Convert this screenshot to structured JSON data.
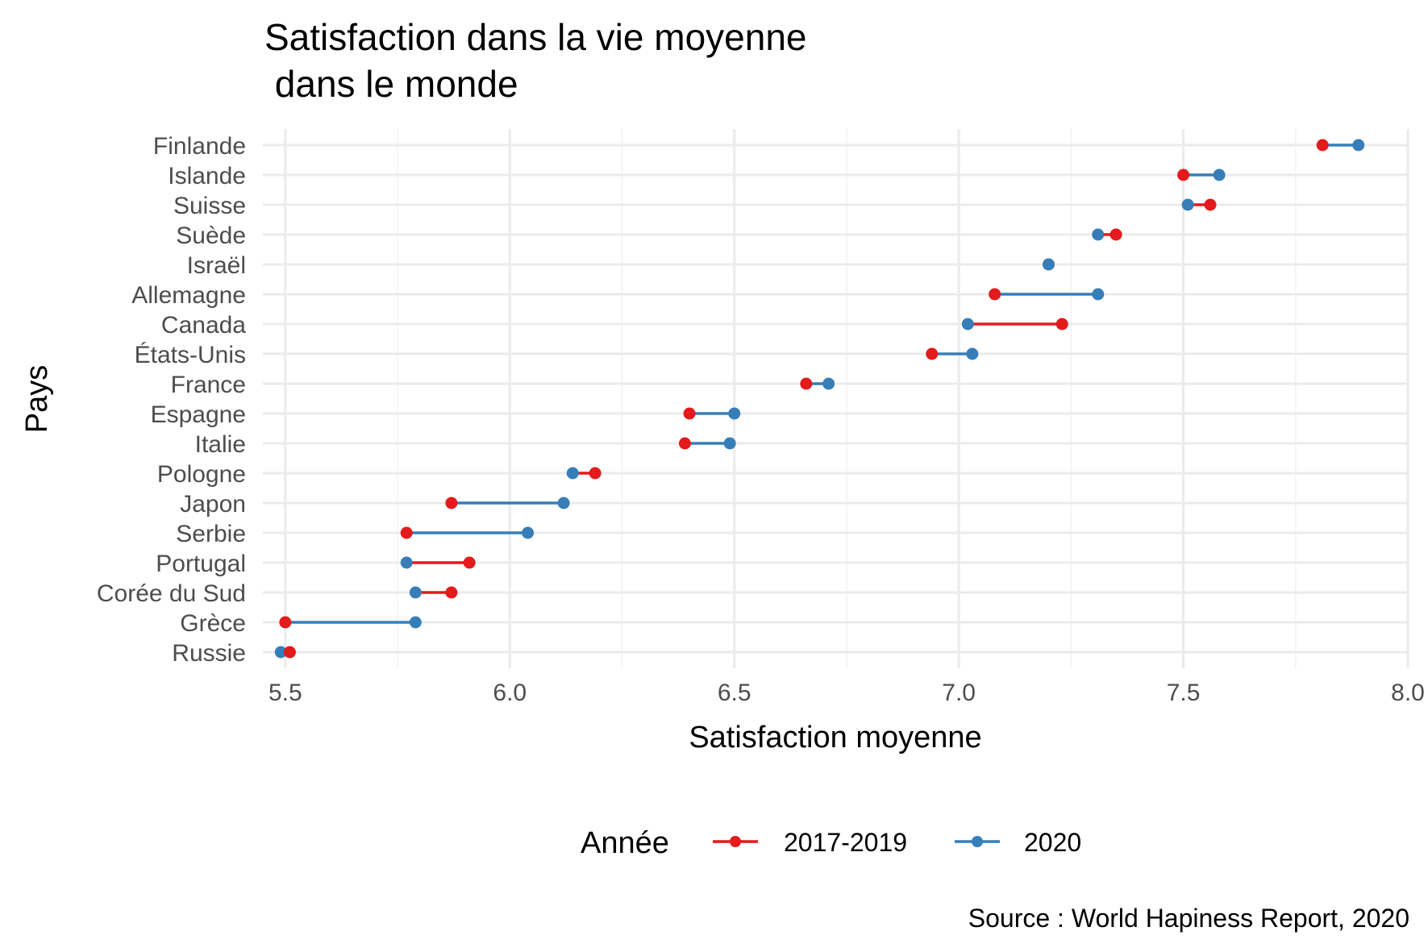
{
  "chart_data": {
    "type": "dumbbell",
    "title_lines": [
      "Satisfaction dans la vie moyenne",
      " dans le monde"
    ],
    "xlabel": "Satisfaction moyenne",
    "ylabel": "Pays",
    "xlim": [
      5.45,
      8.0
    ],
    "x_ticks": [
      5.5,
      6.0,
      6.5,
      7.0,
      7.5,
      8.0
    ],
    "x_tick_labels": [
      "5.5",
      "6.0",
      "6.5",
      "7.0",
      "7.5",
      "8.0"
    ],
    "grid": true,
    "legend": {
      "title": "Année",
      "position": "bottom",
      "entries": [
        {
          "label": "2017-2019",
          "color": "#E41A1C"
        },
        {
          "label": "2020",
          "color": "#377EB8"
        }
      ]
    },
    "caption": "Source : World Hapiness Report, 2020",
    "categories": [
      "Finlande",
      "Islande",
      "Suisse",
      "Suède",
      "Israël",
      "Allemagne",
      "Canada",
      "États-Unis",
      "France",
      "Espagne",
      "Italie",
      "Pologne",
      "Japon",
      "Serbie",
      "Portugal",
      "Corée du Sud",
      "Grèce",
      "Russie"
    ],
    "series": [
      {
        "name": "2017-2019",
        "color": "#E41A1C",
        "values": [
          7.81,
          7.5,
          7.56,
          7.35,
          7.2,
          7.08,
          7.23,
          6.94,
          6.66,
          6.4,
          6.39,
          6.19,
          5.87,
          5.77,
          5.91,
          5.87,
          5.5,
          5.51
        ]
      },
      {
        "name": "2020",
        "color": "#377EB8",
        "values": [
          7.89,
          7.58,
          7.51,
          7.31,
          7.2,
          7.31,
          7.02,
          7.03,
          6.71,
          6.5,
          6.49,
          6.14,
          6.12,
          6.04,
          5.77,
          5.79,
          5.79,
          5.49
        ]
      }
    ]
  }
}
